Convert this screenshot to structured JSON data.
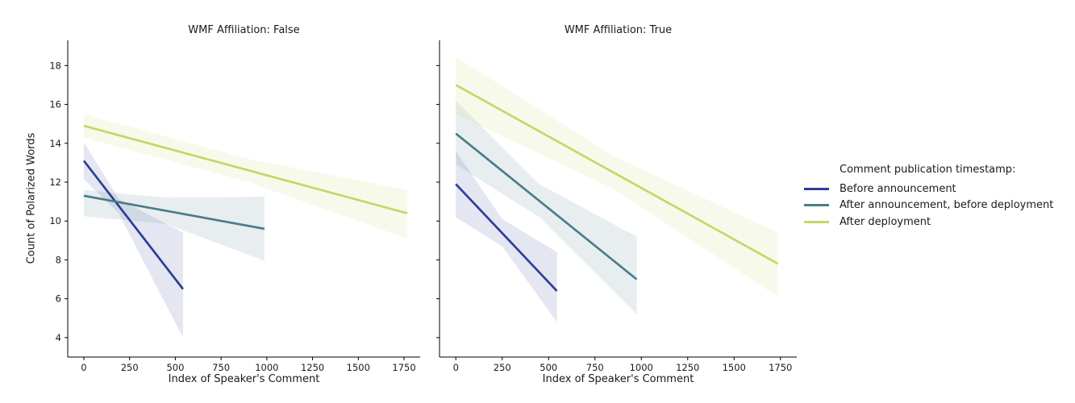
{
  "chart_data": {
    "type": "line",
    "description": "Faceted linear regression plot with confidence bands",
    "xlabel": "Index of Speaker's Comment",
    "ylabel": "Count of Polarized Words",
    "xticks": [
      0,
      250,
      500,
      750,
      1000,
      1250,
      1500,
      1750
    ],
    "yticks": [
      4,
      6,
      8,
      10,
      12,
      14,
      16,
      18
    ],
    "xlim": [
      -88,
      1838
    ],
    "ylim": [
      3.0,
      19.3
    ],
    "grid": false,
    "facets": [
      {
        "title": "WMF Affiliation: False",
        "series": [
          {
            "name": "Before announcement",
            "color": "#2d3e98",
            "x": [
              0,
              542
            ],
            "y": [
              13.1,
              6.5
            ],
            "band": {
              "x": [
                0,
                190,
                542
              ],
              "hi": [
                14.05,
                11.15,
                9.4
              ],
              "lo": [
                12.15,
                10.4,
                4.0
              ]
            }
          },
          {
            "name": "After announcement, before deployment",
            "color": "#4b7d8b",
            "x": [
              0,
              987
            ],
            "y": [
              11.3,
              9.6
            ],
            "band": {
              "x": [
                0,
                450,
                987
              ],
              "hi": [
                11.6,
                11.2,
                11.25
              ],
              "lo": [
                10.25,
                9.85,
                7.95
              ]
            }
          },
          {
            "name": "After deployment",
            "color": "#c4d768",
            "x": [
              0,
              1767
            ],
            "y": [
              14.9,
              10.4
            ],
            "band": {
              "x": [
                0,
                900,
                1767
              ],
              "hi": [
                15.5,
                13.2,
                11.6
              ],
              "lo": [
                14.3,
                12.0,
                9.1
              ]
            }
          }
        ]
      },
      {
        "title": "WMF Affiliation: True",
        "series": [
          {
            "name": "Before announcement",
            "color": "#2d3e98",
            "x": [
              0,
              545
            ],
            "y": [
              11.9,
              6.4
            ],
            "band": {
              "x": [
                0,
                250,
                545
              ],
              "hi": [
                13.6,
                10.1,
                8.4
              ],
              "lo": [
                10.2,
                8.7,
                4.8
              ]
            }
          },
          {
            "name": "After announcement, before deployment",
            "color": "#4b7d8b",
            "x": [
              0,
              975
            ],
            "y": [
              14.5,
              7.0
            ],
            "band": {
              "x": [
                0,
                450,
                975
              ],
              "hi": [
                16.2,
                11.9,
                9.2
              ],
              "lo": [
                12.9,
                10.2,
                5.2
              ]
            }
          },
          {
            "name": "After deployment",
            "color": "#c4d768",
            "x": [
              0,
              1737
            ],
            "y": [
              17.0,
              7.8
            ],
            "band": {
              "x": [
                0,
                850,
                1737
              ],
              "hi": [
                18.45,
                13.35,
                9.4
              ],
              "lo": [
                15.5,
                11.65,
                6.1
              ]
            }
          }
        ]
      }
    ],
    "legend": {
      "position": "right",
      "title": "Comment publication timestamp:",
      "entries": [
        "Before announcement",
        "After announcement, before deployment",
        "After deployment"
      ]
    },
    "colors": {
      "before_announcement": "#2d3e98",
      "after_announcement_before_deployment": "#4b7d8b",
      "after_deployment": "#c4d768",
      "text": "#1a1a1a",
      "spine": "#000000",
      "background": "#ffffff"
    }
  }
}
